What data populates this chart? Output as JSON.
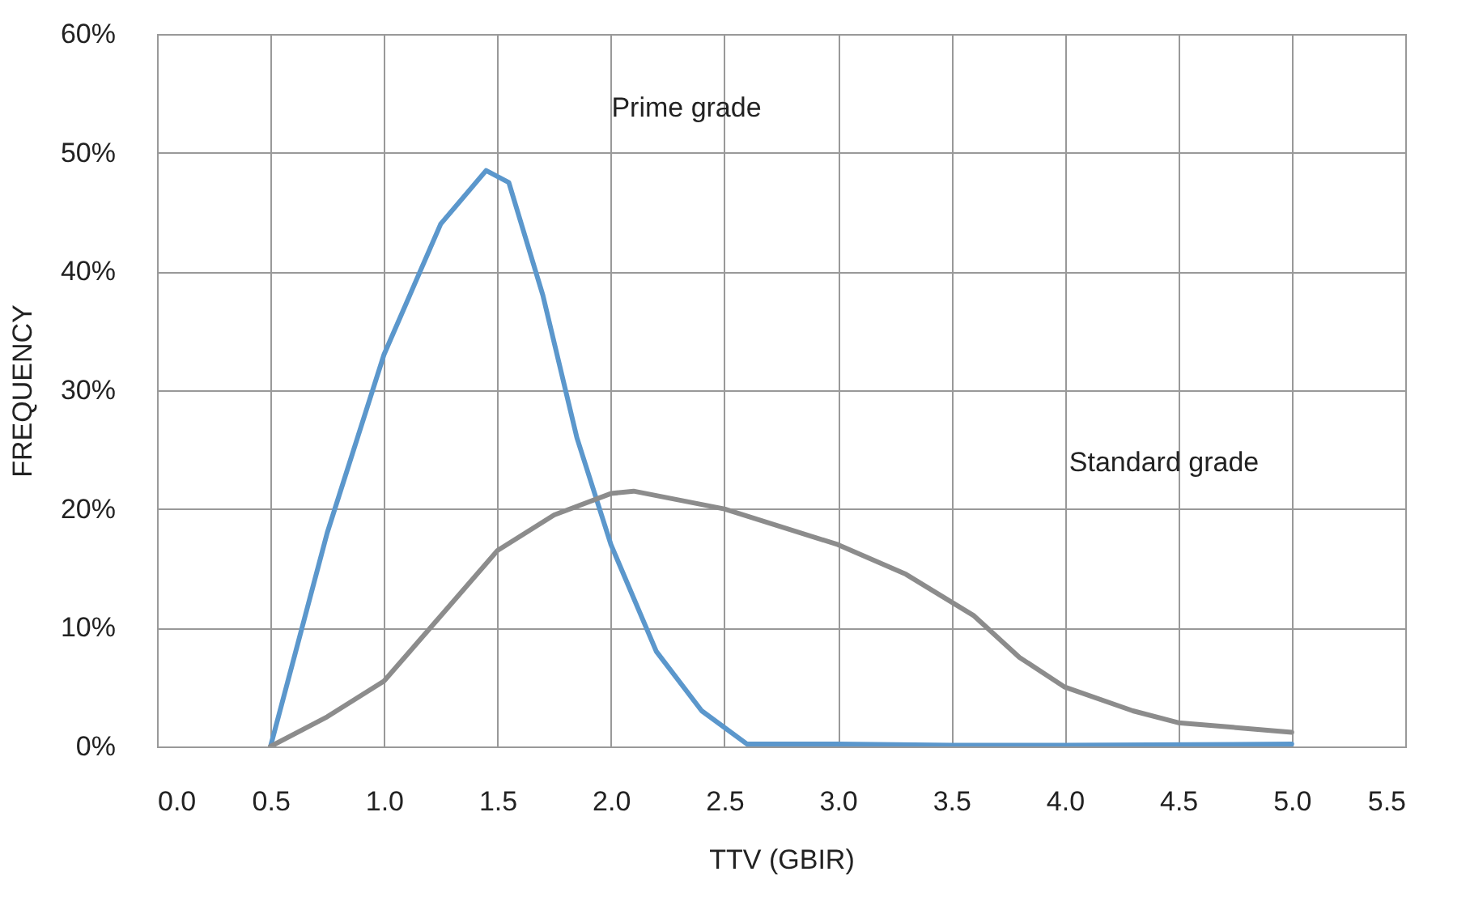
{
  "chart_data": {
    "type": "line",
    "xlabel": "TTV (GBIR)",
    "ylabel": "FREQUENCY",
    "xlim": [
      0,
      5.5
    ],
    "ylim": [
      0,
      60
    ],
    "xticks": [
      {
        "value": 0,
        "label": "0.0"
      },
      {
        "value": 0.5,
        "label": "0.5"
      },
      {
        "value": 1,
        "label": "1.0"
      },
      {
        "value": 1.5,
        "label": "1.5"
      },
      {
        "value": 2,
        "label": "2.0"
      },
      {
        "value": 2.5,
        "label": "2.5"
      },
      {
        "value": 3,
        "label": "3.0"
      },
      {
        "value": 3.5,
        "label": "3.5"
      },
      {
        "value": 4,
        "label": "4.0"
      },
      {
        "value": 4.5,
        "label": "4.5"
      },
      {
        "value": 5,
        "label": "5.0"
      },
      {
        "value": 5.5,
        "label": "5.5"
      }
    ],
    "yticks": [
      {
        "value": 0,
        "label": "0%"
      },
      {
        "value": 10,
        "label": "10%"
      },
      {
        "value": 20,
        "label": "20%"
      },
      {
        "value": 30,
        "label": "30%"
      },
      {
        "value": 40,
        "label": "40%"
      },
      {
        "value": 50,
        "label": "50%"
      },
      {
        "value": 60,
        "label": "60%"
      }
    ],
    "grid": true,
    "marker": "none",
    "line_style": "solid",
    "series": [
      {
        "color": "#5b97cc",
        "x": [
          0.5,
          0.75,
          1.0,
          1.25,
          1.45,
          1.55,
          1.7,
          1.85,
          2.0,
          2.2,
          2.4,
          2.6,
          3.0,
          3.5,
          4.0,
          5.0
        ],
        "values": [
          0,
          18,
          33,
          44,
          48.5,
          47.5,
          38,
          26,
          17,
          8,
          3,
          0.2,
          0.2,
          0.1,
          0.1,
          0.2
        ]
      },
      {
        "color": "#8c8c8c",
        "x": [
          0.5,
          0.75,
          1.0,
          1.25,
          1.5,
          1.75,
          2.0,
          2.1,
          2.5,
          3.0,
          3.3,
          3.6,
          3.8,
          4.0,
          4.3,
          4.5,
          5.0
        ],
        "values": [
          0,
          2.5,
          5.5,
          11,
          16.5,
          19.5,
          21.3,
          21.5,
          20,
          17,
          14.5,
          11,
          7.5,
          5,
          3,
          2,
          1.2
        ]
      }
    ],
    "annotations": [
      "Prime grade",
      "Standard grade"
    ]
  }
}
